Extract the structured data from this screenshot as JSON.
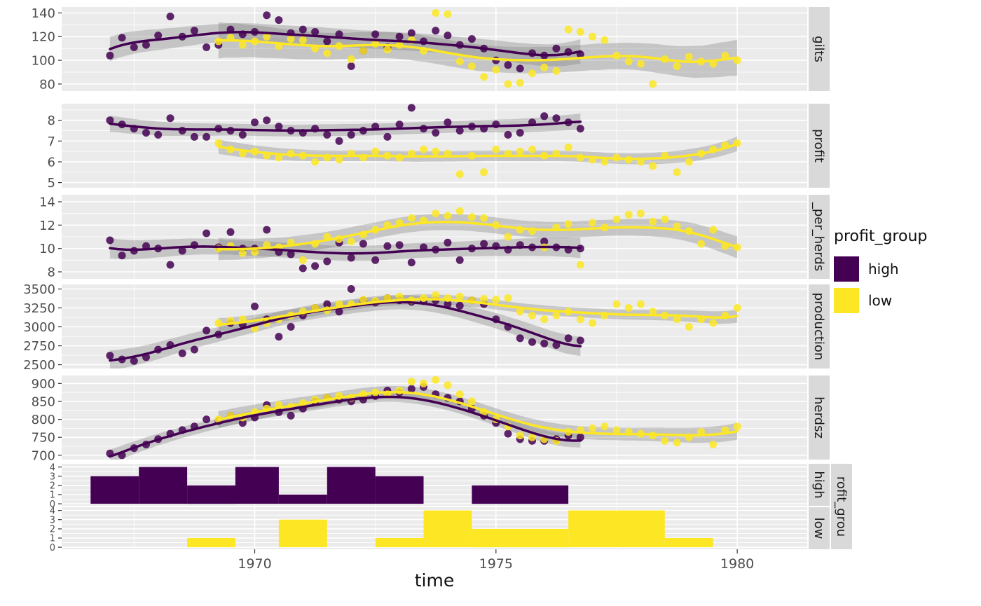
{
  "legend": {
    "title": "profit_group",
    "items": [
      {
        "label": "high",
        "color": "#440154"
      },
      {
        "label": "low",
        "color": "#FDE725"
      }
    ]
  },
  "colors": {
    "high": "#440154",
    "low": "#FDE725",
    "panel_bg": "#EBEBEB",
    "grid": "#FFFFFF",
    "strip_bg": "#D9D9D9",
    "tick_label": "#4D4D4D",
    "strip_text": "#1A1A1A",
    "ribbon": "rgba(127,127,127,0.35)"
  },
  "chart_data": {
    "type": "scatter",
    "subtype": "faceted-scatter-with-loess-and-histograms",
    "x": {
      "label": "time",
      "range": [
        1966.0,
        1981.45
      ],
      "ticks": [
        1970,
        1975,
        1980
      ],
      "tick_labels": [
        "1970",
        "1975",
        "1980"
      ],
      "minor": [
        1967.5,
        1972.5,
        1977.5
      ]
    },
    "groups": [
      "high",
      "low"
    ],
    "time_high": [
      1967.0,
      1967.25,
      1967.5,
      1967.75,
      1968.0,
      1968.25,
      1968.5,
      1968.75,
      1969.0,
      1969.25,
      1969.5,
      1969.75,
      1970.0,
      1970.25,
      1970.5,
      1970.75,
      1971.0,
      1971.25,
      1971.5,
      1971.75,
      1972.0,
      1972.25,
      1972.5,
      1972.75,
      1973.0,
      1973.25,
      1973.5,
      1973.75,
      1974.0,
      1974.25,
      1974.5,
      1974.75,
      1975.0,
      1975.25,
      1975.5,
      1975.75,
      1976.0,
      1976.25,
      1976.5,
      1976.75
    ],
    "time_low": [
      1969.25,
      1969.5,
      1969.75,
      1970.0,
      1970.25,
      1970.5,
      1970.75,
      1971.0,
      1971.25,
      1971.5,
      1971.75,
      1972.0,
      1972.25,
      1972.5,
      1972.75,
      1973.0,
      1973.25,
      1973.5,
      1973.75,
      1974.0,
      1974.25,
      1974.5,
      1974.75,
      1975.0,
      1975.25,
      1975.5,
      1975.75,
      1976.0,
      1976.25,
      1976.5,
      1976.75,
      1977.0,
      1977.25,
      1977.5,
      1977.75,
      1978.0,
      1978.25,
      1978.5,
      1978.75,
      1979.0,
      1979.25,
      1979.5,
      1979.75,
      1980.0
    ],
    "panels": [
      {
        "facet": "gilts",
        "kind": "scatter",
        "ylim": [
          74,
          145
        ],
        "yticks": [
          80,
          100,
          120,
          140
        ],
        "high": [
          104,
          119,
          111,
          113,
          121,
          137,
          120,
          125,
          111,
          113,
          126,
          122,
          124,
          138,
          134,
          123,
          126,
          124,
          116,
          122,
          95,
          108,
          122,
          111,
          120,
          123,
          116,
          125,
          121,
          113,
          118,
          110,
          100,
          96,
          93,
          106,
          104,
          110,
          107,
          105
        ],
        "low": [
          116,
          119,
          113,
          116,
          120,
          112,
          118,
          117,
          110,
          106,
          112,
          101,
          108,
          114,
          109,
          113,
          117,
          108,
          140,
          139,
          99,
          95,
          86,
          92,
          80,
          81,
          89,
          94,
          91,
          126,
          124,
          120,
          117,
          104,
          99,
          97,
          80,
          101,
          95,
          103,
          99,
          97,
          104,
          100
        ]
      },
      {
        "facet": "profit",
        "kind": "scatter",
        "ylim": [
          4.75,
          8.8
        ],
        "yticks": [
          5,
          6,
          7,
          8
        ],
        "high": [
          8.0,
          7.8,
          7.6,
          7.4,
          7.3,
          8.1,
          7.5,
          7.2,
          7.2,
          7.6,
          7.5,
          7.3,
          7.9,
          8.0,
          7.7,
          7.5,
          7.4,
          7.6,
          7.3,
          7.0,
          7.3,
          7.5,
          7.7,
          7.2,
          7.8,
          8.6,
          7.6,
          7.4,
          7.9,
          7.5,
          7.7,
          7.6,
          7.8,
          7.3,
          7.4,
          7.9,
          8.2,
          8.1,
          7.9,
          7.6
        ],
        "low": [
          6.9,
          6.6,
          6.4,
          6.5,
          6.3,
          6.2,
          6.4,
          6.3,
          6.0,
          6.2,
          6.1,
          6.4,
          6.2,
          6.5,
          6.3,
          6.2,
          6.4,
          6.6,
          6.5,
          6.4,
          5.4,
          6.3,
          5.5,
          6.6,
          6.4,
          6.5,
          6.6,
          6.3,
          6.4,
          6.7,
          6.2,
          6.1,
          6.0,
          6.2,
          6.1,
          6.0,
          5.8,
          6.3,
          5.5,
          6.0,
          6.4,
          6.6,
          6.8,
          6.9
        ]
      },
      {
        "facet": "_per_herds",
        "kind": "scatter",
        "ylim": [
          7.4,
          14.6
        ],
        "yticks": [
          8,
          10,
          12,
          14
        ],
        "high": [
          10.7,
          9.4,
          9.8,
          10.2,
          10.0,
          8.6,
          9.8,
          10.3,
          11.3,
          10.1,
          11.4,
          10.0,
          10.0,
          11.6,
          9.7,
          9.5,
          8.3,
          8.5,
          8.9,
          10.5,
          9.2,
          10.4,
          9.0,
          10.2,
          10.3,
          8.8,
          10.1,
          9.9,
          10.5,
          9.0,
          10.0,
          10.4,
          10.2,
          9.9,
          10.3,
          10.1,
          10.6,
          10.1,
          9.9,
          10.0
        ],
        "low": [
          10.0,
          10.2,
          9.6,
          9.7,
          10.3,
          10.1,
          10.5,
          9.0,
          10.4,
          11.0,
          10.8,
          10.6,
          11.2,
          11.6,
          12.0,
          12.2,
          12.6,
          12.4,
          13.0,
          12.8,
          13.2,
          12.7,
          12.6,
          12.0,
          11.0,
          11.6,
          11.5,
          10.1,
          11.8,
          12.1,
          8.6,
          12.2,
          11.8,
          12.5,
          12.9,
          13.0,
          12.3,
          12.5,
          11.9,
          11.5,
          10.4,
          11.6,
          10.2,
          10.1
        ]
      },
      {
        "facet": "production",
        "kind": "scatter",
        "ylim": [
          2450,
          3560
        ],
        "yticks": [
          2500,
          2750,
          3000,
          3250,
          3500
        ],
        "high": [
          2620,
          2570,
          2550,
          2600,
          2700,
          2760,
          2650,
          2700,
          2950,
          2900,
          3050,
          3030,
          3270,
          3100,
          2870,
          3000,
          3150,
          3250,
          3300,
          3200,
          3500,
          3350,
          3320,
          3380,
          3350,
          3330,
          3340,
          3350,
          3300,
          3280,
          3350,
          3300,
          3100,
          3000,
          2850,
          2800,
          2780,
          2760,
          2850,
          2820
        ],
        "low": [
          3050,
          3080,
          3100,
          2980,
          3050,
          3100,
          3150,
          3200,
          3250,
          3220,
          3300,
          3300,
          3360,
          3340,
          3380,
          3400,
          3350,
          3380,
          3420,
          3380,
          3400,
          3350,
          3370,
          3360,
          3380,
          3200,
          3150,
          3100,
          3150,
          3200,
          3100,
          3050,
          3150,
          3300,
          3250,
          3300,
          3200,
          3150,
          3100,
          3000,
          3100,
          3050,
          3150,
          3250
        ]
      },
      {
        "facet": "herdsz",
        "kind": "scatter",
        "ylim": [
          688,
          922
        ],
        "yticks": [
          700,
          750,
          800,
          850,
          900
        ],
        "high": [
          705,
          700,
          720,
          730,
          745,
          760,
          770,
          780,
          800,
          795,
          810,
          790,
          805,
          840,
          820,
          810,
          830,
          850,
          860,
          855,
          850,
          855,
          865,
          880,
          875,
          885,
          890,
          870,
          860,
          850,
          830,
          810,
          790,
          760,
          745,
          740,
          740,
          745,
          755,
          750
        ],
        "low": [
          800,
          810,
          805,
          820,
          830,
          840,
          835,
          845,
          855,
          860,
          865,
          860,
          870,
          875,
          870,
          880,
          905,
          900,
          910,
          895,
          870,
          850,
          820,
          800,
          780,
          755,
          750,
          745,
          740,
          765,
          770,
          775,
          780,
          770,
          765,
          760,
          755,
          740,
          735,
          750,
          765,
          730,
          770,
          780
        ]
      },
      {
        "facet": "high",
        "kind": "hist",
        "group": "high",
        "ylim": [
          -0.22,
          4.35
        ],
        "yticks": [
          0,
          1,
          2,
          3,
          4
        ],
        "bars": [
          [
            1966.6,
            1967.6,
            3
          ],
          [
            1967.6,
            1968.6,
            4
          ],
          [
            1968.6,
            1969.6,
            2
          ],
          [
            1969.6,
            1970.5,
            4
          ],
          [
            1970.5,
            1971.5,
            1
          ],
          [
            1971.5,
            1972.5,
            4
          ],
          [
            1972.5,
            1973.5,
            3
          ],
          [
            1974.5,
            1976.5,
            2
          ]
        ]
      },
      {
        "facet": "low",
        "kind": "hist",
        "group": "low",
        "ylim": [
          -0.22,
          4.35
        ],
        "yticks": [
          0,
          1,
          2,
          3,
          4
        ],
        "bars": [
          [
            1968.6,
            1969.6,
            1
          ],
          [
            1970.5,
            1971.5,
            3
          ],
          [
            1972.5,
            1973.5,
            1
          ],
          [
            1973.5,
            1974.5,
            4
          ],
          [
            1974.5,
            1976.5,
            2
          ],
          [
            1976.5,
            1978.5,
            4
          ],
          [
            1978.5,
            1979.5,
            1
          ]
        ]
      }
    ],
    "outer_strip": "rofit_grou"
  }
}
